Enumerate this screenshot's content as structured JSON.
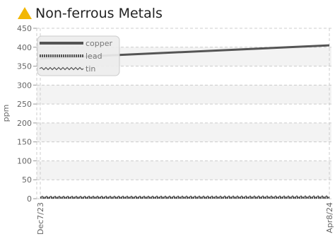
{
  "header": {
    "title": "Non-ferrous Metals",
    "warning_icon": "warning-triangle-icon",
    "warning_color": "#f2b705"
  },
  "colors": {
    "line": "#555555",
    "grid": "#cccccc",
    "band": "#f3f3f3"
  },
  "chart_data": {
    "type": "line",
    "title": "Non-ferrous Metals",
    "xlabel": "",
    "ylabel": "ppm",
    "ylim": [
      0,
      450
    ],
    "yticks": [
      0,
      50,
      100,
      150,
      200,
      250,
      300,
      350,
      400,
      450
    ],
    "xrange": [
      "Dec7/23",
      "Apr8/24"
    ],
    "xtick_labels": [
      "Dec7/23",
      "Apr8/24"
    ],
    "grid": true,
    "legend_position": "top-left",
    "series": [
      {
        "name": "copper",
        "style": "solid",
        "x": [
          "Dec7/23",
          "Apr8/24"
        ],
        "values": [
          370,
          405
        ]
      },
      {
        "name": "lead",
        "style": "dashed",
        "x": [
          "Dec7/23",
          "Apr8/24"
        ],
        "values": [
          0,
          0
        ]
      },
      {
        "name": "tin",
        "style": "zigzag",
        "x": [
          "Dec7/23",
          "Apr8/24"
        ],
        "values": [
          0,
          1
        ]
      }
    ]
  }
}
